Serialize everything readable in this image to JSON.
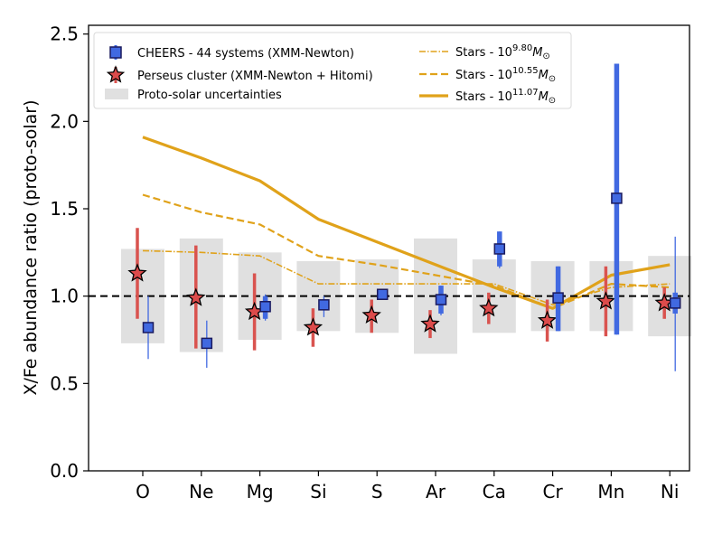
{
  "chart_data": {
    "type": "scatter",
    "title": "",
    "xlabel": "",
    "ylabel": "X/Fe abundance ratio (proto-solar)",
    "ylim": [
      0.0,
      2.55
    ],
    "yticks": [
      0.0,
      0.5,
      1.0,
      1.5,
      2.0,
      2.5
    ],
    "ytick_labels": [
      "0.0",
      "0.5",
      "1.0",
      "1.5",
      "2.0",
      "2.5"
    ],
    "categories": [
      "O",
      "Ne",
      "Mg",
      "Si",
      "S",
      "Ar",
      "Ca",
      "Cr",
      "Mn",
      "Ni"
    ],
    "reference_line": 1.0,
    "legend_position": "top",
    "legend": {
      "cheers": "CHEERS - 44 systems (XMM-Newton)",
      "perseus": "Perseus cluster (XMM-Newton + Hitomi)",
      "protosolar": "Proto-solar uncertainties",
      "stars_low": {
        "prefix": "Stars - 10",
        "exp": "9.80",
        "unit": "M",
        "sub": "⊙"
      },
      "stars_mid": {
        "prefix": "Stars - 10",
        "exp": "10.55",
        "unit": "M",
        "sub": "⊙"
      },
      "stars_high": {
        "prefix": "Stars - 10",
        "exp": "11.07",
        "unit": "M",
        "sub": "⊙"
      }
    },
    "colors": {
      "cheers": "#4169e1",
      "cheers_edge": "#1a1a5e",
      "perseus": "#dc4b4b",
      "perseus_err": "#d9534f",
      "stars": "#e0a21a",
      "protosolar": "#e0e0e0"
    },
    "protosolar": [
      {
        "lo": 0.73,
        "hi": 1.27
      },
      {
        "lo": 0.68,
        "hi": 1.33
      },
      {
        "lo": 0.75,
        "hi": 1.25
      },
      {
        "lo": 0.8,
        "hi": 1.2
      },
      {
        "lo": 0.79,
        "hi": 1.21
      },
      {
        "lo": 0.67,
        "hi": 1.33
      },
      {
        "lo": 0.79,
        "hi": 1.21
      },
      {
        "lo": 0.8,
        "hi": 1.2
      },
      {
        "lo": 0.8,
        "hi": 1.2
      },
      {
        "lo": 0.77,
        "hi": 1.23
      }
    ],
    "cheers": [
      {
        "value": 0.82,
        "err_lo": 0.64,
        "err_hi": 1.0,
        "stat_lo": 0.8,
        "stat_hi": 0.85
      },
      {
        "value": 0.73,
        "err_lo": 0.59,
        "err_hi": 0.86,
        "stat_lo": 0.71,
        "stat_hi": 0.75
      },
      {
        "value": 0.94,
        "err_lo": 0.86,
        "err_hi": 1.01,
        "stat_lo": 0.87,
        "stat_hi": 1.0
      },
      {
        "value": 0.95,
        "err_lo": 0.88,
        "err_hi": 1.0,
        "stat_lo": 0.93,
        "stat_hi": 0.97
      },
      {
        "value": 1.01,
        "err_lo": 0.99,
        "err_hi": 1.03,
        "stat_lo": 0.99,
        "stat_hi": 1.03
      },
      {
        "value": 0.98,
        "err_lo": 0.89,
        "err_hi": 1.06,
        "stat_lo": 0.9,
        "stat_hi": 1.06
      },
      {
        "value": 1.27,
        "err_lo": 1.16,
        "err_hi": 1.37,
        "stat_lo": 1.17,
        "stat_hi": 1.37
      },
      {
        "value": 0.99,
        "err_lo": 0.8,
        "err_hi": 1.17,
        "stat_lo": 0.8,
        "stat_hi": 1.17
      },
      {
        "value": 1.56,
        "err_lo": 0.78,
        "err_hi": 2.33,
        "stat_lo": 0.78,
        "stat_hi": 2.33
      },
      {
        "value": 0.96,
        "err_lo": 0.57,
        "err_hi": 1.34,
        "stat_lo": 0.9,
        "stat_hi": 1.02
      }
    ],
    "perseus": [
      {
        "value": 1.13,
        "err_lo": 0.87,
        "err_hi": 1.39
      },
      {
        "value": 0.99,
        "err_lo": 0.7,
        "err_hi": 1.29
      },
      {
        "value": 0.91,
        "err_lo": 0.69,
        "err_hi": 1.13
      },
      {
        "value": 0.82,
        "err_lo": 0.71,
        "err_hi": 0.93
      },
      {
        "value": 0.89,
        "err_lo": 0.79,
        "err_hi": 0.98
      },
      {
        "value": 0.84,
        "err_lo": 0.76,
        "err_hi": 0.92
      },
      {
        "value": 0.93,
        "err_lo": 0.84,
        "err_hi": 1.02
      },
      {
        "value": 0.86,
        "err_lo": 0.74,
        "err_hi": 0.98
      },
      {
        "value": 0.97,
        "err_lo": 0.77,
        "err_hi": 1.17
      },
      {
        "value": 0.96,
        "err_lo": 0.87,
        "err_hi": 1.05
      }
    ],
    "stars_low": [
      1.26,
      1.25,
      1.23,
      1.07,
      1.07,
      1.07,
      1.07,
      0.95,
      1.05,
      1.07
    ],
    "stars_mid": [
      1.58,
      1.48,
      1.41,
      1.23,
      1.18,
      1.12,
      1.06,
      0.93,
      1.07,
      1.05
    ],
    "stars_high": [
      1.91,
      1.79,
      1.66,
      1.44,
      1.31,
      1.18,
      1.05,
      0.93,
      1.12,
      1.18
    ]
  }
}
